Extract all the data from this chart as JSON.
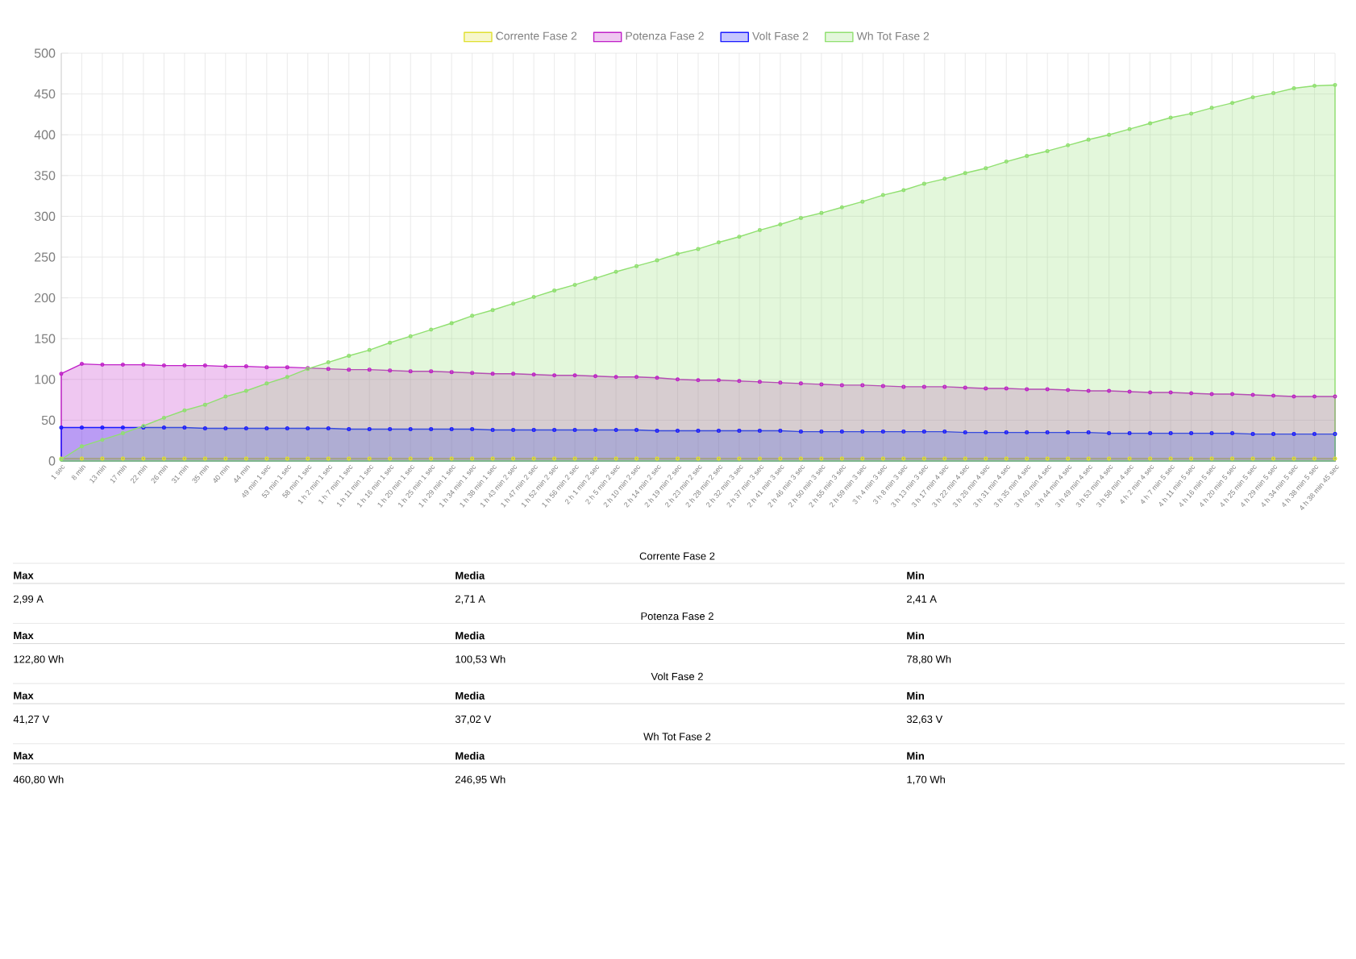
{
  "chart_data": {
    "type": "area",
    "categories": [
      "1 sec",
      "8 min",
      "13 min",
      "17 min",
      "22 min",
      "26 min",
      "31 min",
      "35 min",
      "40 min",
      "44 min",
      "49 min 1 sec",
      "53 min 1 sec",
      "58 min 1 sec",
      "1 h 2 min 1 sec",
      "1 h 7 min 1 sec",
      "1 h 11 min 1 sec",
      "1 h 16 min 1 sec",
      "1 h 20 min 1 sec",
      "1 h 25 min 1 sec",
      "1 h 29 min 1 sec",
      "1 h 34 min 1 sec",
      "1 h 38 min 1 sec",
      "1 h 43 min 2 sec",
      "1 h 47 min 2 sec",
      "1 h 52 min 2 sec",
      "1 h 56 min 2 sec",
      "2 h 1 min 2 sec",
      "2 h 5 min 2 sec",
      "2 h 10 min 2 sec",
      "2 h 14 min 2 sec",
      "2 h 19 min 2 sec",
      "2 h 23 min 2 sec",
      "2 h 28 min 2 sec",
      "2 h 32 min 3 sec",
      "2 h 37 min 3 sec",
      "2 h 41 min 3 sec",
      "2 h 46 min 3 sec",
      "2 h 50 min 3 sec",
      "2 h 55 min 3 sec",
      "2 h 59 min 3 sec",
      "3 h 4 min 3 sec",
      "3 h 8 min 3 sec",
      "3 h 13 min 3 sec",
      "3 h 17 min 4 sec",
      "3 h 22 min 4 sec",
      "3 h 26 min 4 sec",
      "3 h 31 min 4 sec",
      "3 h 35 min 4 sec",
      "3 h 40 min 4 sec",
      "3 h 44 min 4 sec",
      "3 h 49 min 4 sec",
      "3 h 53 min 4 sec",
      "3 h 58 min 4 sec",
      "4 h 2 min 4 sec",
      "4 h 7 min 5 sec",
      "4 h 11 min 5 sec",
      "4 h 16 min 5 sec",
      "4 h 20 min 5 sec",
      "4 h 25 min 5 sec",
      "4 h 29 min 5 sec",
      "4 h 34 min 5 sec",
      "4 h 38 min 5 sec",
      "4 h 38 min 45 sec"
    ],
    "series": [
      {
        "name": "Corrente Fase 2",
        "color": "#e0e030",
        "values": [
          3,
          3,
          3,
          3,
          3,
          3,
          3,
          3,
          3,
          3,
          3,
          3,
          3,
          3,
          3,
          3,
          3,
          3,
          3,
          3,
          3,
          3,
          3,
          3,
          3,
          3,
          3,
          3,
          3,
          3,
          3,
          3,
          3,
          3,
          3,
          3,
          3,
          3,
          3,
          3,
          3,
          3,
          3,
          3,
          3,
          3,
          3,
          3,
          3,
          3,
          3,
          3,
          3,
          3,
          3,
          3,
          3,
          3,
          3,
          3,
          3,
          3,
          3
        ]
      },
      {
        "name": "Potenza Fase 2",
        "color": "#c020c8",
        "values": [
          107,
          119,
          118,
          118,
          118,
          117,
          117,
          117,
          116,
          116,
          115,
          115,
          114,
          113,
          112,
          112,
          111,
          110,
          110,
          109,
          108,
          107,
          107,
          106,
          105,
          105,
          104,
          103,
          103,
          102,
          100,
          99,
          99,
          98,
          97,
          96,
          95,
          94,
          93,
          93,
          92,
          91,
          91,
          91,
          90,
          89,
          89,
          88,
          88,
          87,
          86,
          86,
          85,
          84,
          84,
          83,
          82,
          82,
          81,
          80,
          79,
          79,
          79
        ]
      },
      {
        "name": "Volt Fase 2",
        "color": "#1a1aff",
        "values": [
          41,
          41,
          41,
          41,
          41,
          41,
          41,
          40,
          40,
          40,
          40,
          40,
          40,
          40,
          39,
          39,
          39,
          39,
          39,
          39,
          39,
          38,
          38,
          38,
          38,
          38,
          38,
          38,
          38,
          37,
          37,
          37,
          37,
          37,
          37,
          37,
          36,
          36,
          36,
          36,
          36,
          36,
          36,
          36,
          35,
          35,
          35,
          35,
          35,
          35,
          35,
          34,
          34,
          34,
          34,
          34,
          34,
          34,
          33,
          33,
          33,
          33,
          33
        ]
      },
      {
        "name": "Wh Tot Fase 2",
        "color": "#90e070",
        "values": [
          2,
          18,
          26,
          34,
          43,
          53,
          62,
          69,
          79,
          86,
          95,
          103,
          113,
          121,
          129,
          136,
          145,
          153,
          161,
          169,
          178,
          185,
          193,
          201,
          209,
          216,
          224,
          232,
          239,
          246,
          254,
          260,
          268,
          275,
          283,
          290,
          298,
          304,
          311,
          318,
          326,
          332,
          340,
          346,
          353,
          359,
          367,
          374,
          380,
          387,
          394,
          400,
          407,
          414,
          421,
          426,
          433,
          439,
          446,
          451,
          457,
          460,
          461
        ]
      }
    ],
    "ylim": [
      0,
      500
    ],
    "yticks": [
      0,
      50,
      100,
      150,
      200,
      250,
      300,
      350,
      400,
      450,
      500
    ],
    "grid": true,
    "legend": "top",
    "marker": "circle",
    "annotations": [
      "Corrente Fase 2",
      "Max",
      "Media",
      "Min",
      "2,99 A",
      "2,71 A",
      "2,41 A",
      "Potenza Fase 2",
      "Max",
      "Media",
      "Min",
      "122,80 Wh",
      "100,53 Wh",
      "78,80 Wh",
      "Volt Fase 2",
      "Max",
      "Media",
      "Min",
      "41,27 V",
      "37,02 V",
      "32,63 V",
      "Wh Tot Fase 2",
      "Max",
      "Media",
      "Min",
      "460,80 Wh",
      "246,95 Wh",
      "1,70 Wh"
    ]
  }
}
